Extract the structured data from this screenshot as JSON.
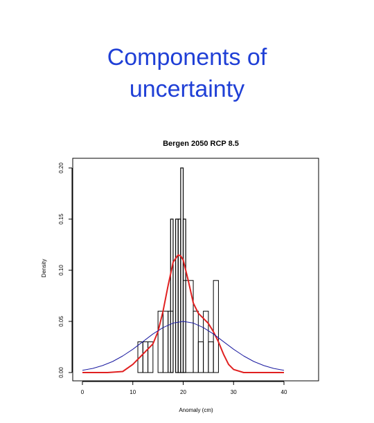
{
  "slide": {
    "title_line1": "Components of",
    "title_line2": "uncertainty"
  },
  "colors": {
    "title": "#1f3fd6",
    "kde": "#e02020",
    "normal": "#1a1aa0",
    "bars": "#000000"
  },
  "chart_data": {
    "type": "histogram",
    "title": "Bergen 2050 RCP 8.5",
    "xlabel": "Anomaly (cm)",
    "ylabel": "Density",
    "xlim": [
      0,
      40
    ],
    "ylim": [
      0,
      0.2
    ],
    "x_ticks": [
      0,
      10,
      20,
      30,
      40
    ],
    "x_tick_labels": [
      "0",
      "10",
      "20",
      "30",
      "40"
    ],
    "y_ticks": [
      0.0,
      0.05,
      0.1,
      0.15,
      0.2
    ],
    "y_tick_labels": [
      "0.00",
      "0.05",
      "0.10",
      "0.15",
      "0.20"
    ],
    "grid": false,
    "histogram_bars": [
      {
        "x0": 11,
        "x1": 12,
        "density": 0.03
      },
      {
        "x0": 12,
        "x1": 13,
        "density": 0.03
      },
      {
        "x0": 13,
        "x1": 14,
        "density": 0.03
      },
      {
        "x0": 15,
        "x1": 16,
        "density": 0.06
      },
      {
        "x0": 16,
        "x1": 17,
        "density": 0.06
      },
      {
        "x0": 17,
        "x1": 18,
        "density": 0.06
      },
      {
        "x0": 17.5,
        "x1": 18,
        "density": 0.15
      },
      {
        "x0": 18.5,
        "x1": 19,
        "density": 0.15
      },
      {
        "x0": 19,
        "x1": 19.5,
        "density": 0.15
      },
      {
        "x0": 19.5,
        "x1": 20,
        "density": 0.2
      },
      {
        "x0": 20,
        "x1": 20.5,
        "density": 0.15
      },
      {
        "x0": 20,
        "x1": 22,
        "density": 0.09
      },
      {
        "x0": 22,
        "x1": 23,
        "density": 0.06
      },
      {
        "x0": 23,
        "x1": 24,
        "density": 0.03
      },
      {
        "x0": 24,
        "x1": 25,
        "density": 0.06
      },
      {
        "x0": 25,
        "x1": 26,
        "density": 0.03
      },
      {
        "x0": 26,
        "x1": 27,
        "density": 0.09
      }
    ],
    "series": [
      {
        "type": "kde",
        "x": [
          0,
          5,
          8,
          10,
          12,
          14,
          15,
          16,
          17,
          18,
          19,
          19.5,
          20,
          21,
          22,
          23,
          24,
          25,
          26,
          27,
          28,
          29,
          30,
          32,
          35,
          40
        ],
        "y": [
          0,
          0,
          0.001,
          0.008,
          0.018,
          0.028,
          0.04,
          0.06,
          0.085,
          0.108,
          0.115,
          0.114,
          0.11,
          0.09,
          0.068,
          0.058,
          0.053,
          0.048,
          0.04,
          0.03,
          0.018,
          0.008,
          0.003,
          0,
          0,
          0
        ]
      },
      {
        "type": "normal",
        "mean": 20,
        "sd": 8,
        "x": [
          0,
          2,
          4,
          6,
          8,
          10,
          12,
          14,
          16,
          18,
          20,
          22,
          24,
          26,
          28,
          30,
          32,
          34,
          36,
          38,
          40
        ],
        "y": [
          0.0022,
          0.004,
          0.0068,
          0.0108,
          0.0162,
          0.0228,
          0.0302,
          0.0377,
          0.044,
          0.0484,
          0.05,
          0.0484,
          0.044,
          0.0377,
          0.0302,
          0.0228,
          0.0162,
          0.0108,
          0.0068,
          0.004,
          0.0022
        ]
      }
    ]
  }
}
